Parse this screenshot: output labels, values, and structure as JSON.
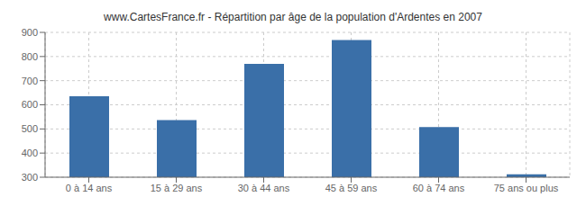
{
  "chart_data": {
    "type": "bar",
    "title": "www.CartesFrance.fr - Répartition par âge de la population d'Ardentes en 2007",
    "categories": [
      "0 à 14 ans",
      "15 à 29 ans",
      "30 à 44 ans",
      "45 à 59 ans",
      "60 à 74 ans",
      "75 ans ou plus"
    ],
    "values": [
      635,
      537,
      770,
      868,
      508,
      312
    ],
    "color": "#3a6fa8",
    "ylim": [
      300,
      900
    ],
    "yticks": [
      300,
      400,
      500,
      600,
      700,
      800,
      900
    ],
    "grid": true
  }
}
